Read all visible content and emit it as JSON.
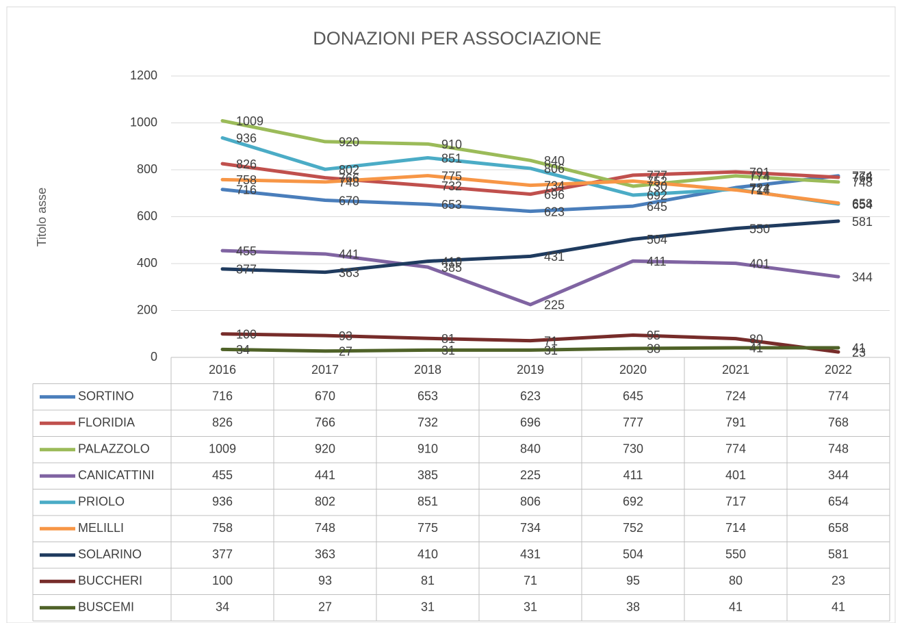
{
  "chart_data": {
    "type": "line",
    "title": "DONAZIONI PER ASSOCIAZIONE",
    "y_axis_label": "Titolo asse",
    "categories": [
      "2016",
      "2017",
      "2018",
      "2019",
      "2020",
      "2021",
      "2022"
    ],
    "ylim": [
      0,
      1200
    ],
    "yticks": [
      0,
      200,
      400,
      600,
      800,
      1000,
      1200
    ],
    "grid": true,
    "data_table": true,
    "series": [
      {
        "name": "SORTINO",
        "color": "#4a7ebb",
        "values": [
          716,
          670,
          653,
          623,
          645,
          724,
          774
        ]
      },
      {
        "name": "FLORIDIA",
        "color": "#c0504d",
        "values": [
          826,
          766,
          732,
          696,
          777,
          791,
          768
        ]
      },
      {
        "name": "PALAZZOLO",
        "color": "#9bbb59",
        "values": [
          1009,
          920,
          910,
          840,
          730,
          774,
          748
        ]
      },
      {
        "name": "CANICATTINI",
        "color": "#8064a2",
        "values": [
          455,
          441,
          385,
          225,
          411,
          401,
          344
        ]
      },
      {
        "name": "PRIOLO",
        "color": "#4bacc6",
        "values": [
          936,
          802,
          851,
          806,
          692,
          717,
          654
        ]
      },
      {
        "name": "MELILLI",
        "color": "#f79646",
        "values": [
          758,
          748,
          775,
          734,
          752,
          714,
          658
        ]
      },
      {
        "name": "SOLARINO",
        "color": "#1f3b5f",
        "values": [
          377,
          363,
          410,
          431,
          504,
          550,
          581
        ]
      },
      {
        "name": "BUCCHERI",
        "color": "#772c2a",
        "values": [
          100,
          93,
          81,
          71,
          95,
          80,
          23
        ]
      },
      {
        "name": "BUSCEMI",
        "color": "#4f6228",
        "values": [
          34,
          27,
          31,
          31,
          38,
          41,
          41
        ]
      }
    ]
  }
}
